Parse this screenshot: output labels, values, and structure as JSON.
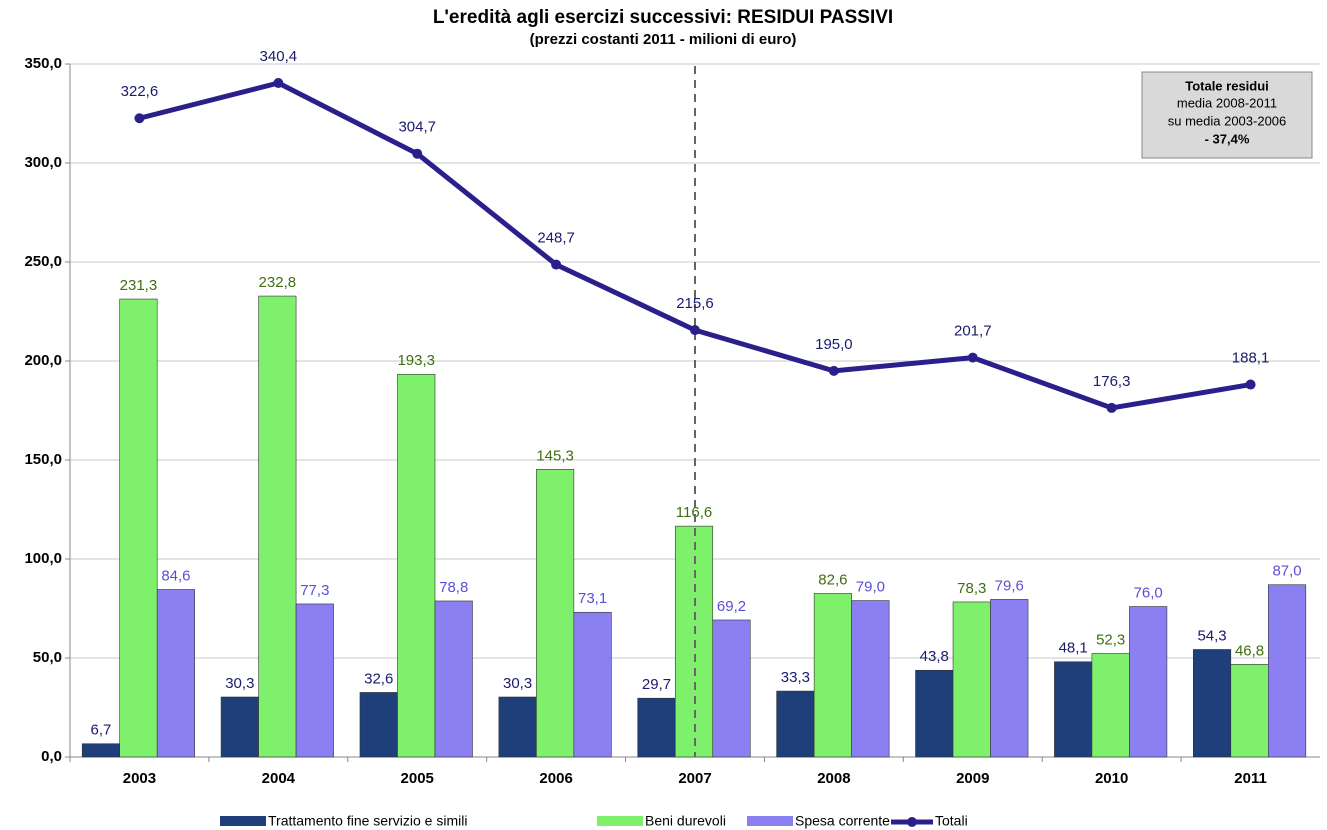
{
  "chart_data": {
    "type": "bar",
    "title": "L'eredità agli esercizi successivi: RESIDUI PASSIVI",
    "subtitle": "(prezzi costanti 2011 - milioni di euro)",
    "categories": [
      "2003",
      "2004",
      "2005",
      "2006",
      "2007",
      "2008",
      "2009",
      "2010",
      "2011"
    ],
    "series": [
      {
        "name": "Trattamento fine servizio e simili",
        "type": "bar",
        "color": "#1f3f7a",
        "label_color": "#1a1a6e",
        "values": [
          6.7,
          30.3,
          32.6,
          30.3,
          29.7,
          33.3,
          43.8,
          48.1,
          54.3
        ],
        "value_labels": [
          "6,7",
          "30,3",
          "32,6",
          "30,3",
          "29,7",
          "33,3",
          "43,8",
          "48,1",
          "54,3"
        ]
      },
      {
        "name": "Beni durevoli",
        "type": "bar",
        "color": "#7ef06c",
        "label_color": "#3f6e12",
        "values": [
          231.3,
          232.8,
          193.3,
          145.3,
          116.6,
          82.6,
          78.3,
          52.3,
          46.8
        ],
        "value_labels": [
          "231,3",
          "232,8",
          "193,3",
          "145,3",
          "116,6",
          "82,6",
          "78,3",
          "52,3",
          "46,8"
        ]
      },
      {
        "name": "Spesa corrente",
        "type": "bar",
        "color": "#8b80f2",
        "label_color": "#5b4fd6",
        "values": [
          84.6,
          77.3,
          78.8,
          73.1,
          69.2,
          79.0,
          79.6,
          76.0,
          87.0
        ],
        "value_labels": [
          "84,6",
          "77,3",
          "78,8",
          "73,1",
          "69,2",
          "79,0",
          "79,6",
          "76,0",
          "87,0"
        ]
      },
      {
        "name": "Totali",
        "type": "line",
        "color": "#2b1f8c",
        "label_color": "#1a1a6e",
        "values": [
          322.6,
          340.4,
          304.7,
          248.7,
          215.6,
          195.0,
          201.7,
          176.3,
          188.1
        ],
        "value_labels": [
          "322,6",
          "340,4",
          "304,7",
          "248,7",
          "215,6",
          "195,0",
          "201,7",
          "176,3",
          "188,1"
        ]
      }
    ],
    "ylim": [
      0,
      350
    ],
    "yticks": [
      {
        "value": 0,
        "label": "0,0"
      },
      {
        "value": 50,
        "label": "50,0"
      },
      {
        "value": 100,
        "label": "100,0"
      },
      {
        "value": 150,
        "label": "150,0"
      },
      {
        "value": 200,
        "label": "200,0"
      },
      {
        "value": 250,
        "label": "250,0"
      },
      {
        "value": 300,
        "label": "300,0"
      },
      {
        "value": 350,
        "label": "350,0"
      }
    ],
    "grid": true,
    "annotation": [
      "Totale residui",
      "media 2008-2011",
      "su media 2003-2006",
      "- 37,4%"
    ]
  }
}
